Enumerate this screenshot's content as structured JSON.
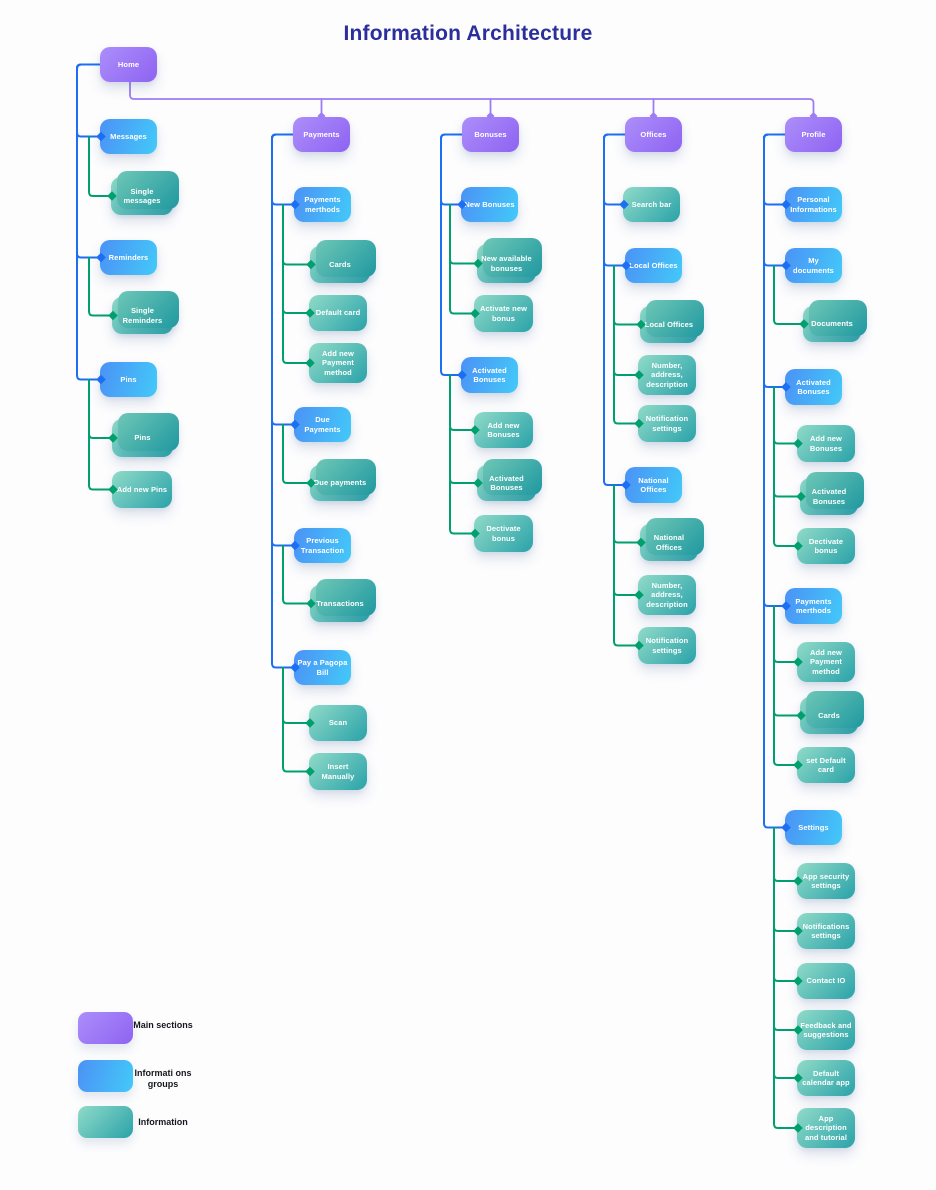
{
  "title": "Information Architecture",
  "colors": {
    "title": "#2b2f9e",
    "main_node": "#9a73f5",
    "group_node": "#47aef7",
    "info_node": "#49b3b2",
    "blue_wire": "#1c6ef2",
    "green_wire": "#00a06e",
    "purple_wire": "#9d7df5"
  },
  "legend": [
    {
      "label": "Main sections",
      "type": "main"
    },
    {
      "label": "Informati ons groups",
      "type": "group"
    },
    {
      "label": "Information",
      "type": "info"
    }
  ],
  "nodes": [
    {
      "id": "home",
      "label": "Home",
      "type": "main",
      "stacked": false,
      "parent": null,
      "link": null
    },
    {
      "id": "messages",
      "label": "Messages",
      "type": "group",
      "stacked": false,
      "parent": "home",
      "link": "blue"
    },
    {
      "id": "single-messages",
      "label": "Single messages",
      "type": "info",
      "stacked": true,
      "parent": "messages",
      "link": "green"
    },
    {
      "id": "reminders",
      "label": "Reminders",
      "type": "group",
      "stacked": false,
      "parent": "home",
      "link": "blue"
    },
    {
      "id": "single-reminders",
      "label": "Single Reminders",
      "type": "info",
      "stacked": true,
      "parent": "reminders",
      "link": "green"
    },
    {
      "id": "pins",
      "label": "Pins",
      "type": "group",
      "stacked": false,
      "parent": "home",
      "link": "blue"
    },
    {
      "id": "pins-info",
      "label": "Pins",
      "type": "info",
      "stacked": true,
      "parent": "pins",
      "link": "green"
    },
    {
      "id": "add-new-pins",
      "label": "Add new Pins",
      "type": "info",
      "stacked": false,
      "parent": "pins",
      "link": "green"
    },
    {
      "id": "payments",
      "label": "Payments",
      "type": "main",
      "stacked": false,
      "parent": "home",
      "link": "purple"
    },
    {
      "id": "payments-methods",
      "label": "Payments merthods",
      "type": "group",
      "stacked": false,
      "parent": "payments",
      "link": "blue"
    },
    {
      "id": "cards",
      "label": "Cards",
      "type": "info",
      "stacked": true,
      "parent": "payments-methods",
      "link": "green"
    },
    {
      "id": "default-card",
      "label": "Default card",
      "type": "info",
      "stacked": false,
      "parent": "payments-methods",
      "link": "green"
    },
    {
      "id": "add-new-payment-method",
      "label": "Add new Payment method",
      "type": "info",
      "stacked": false,
      "parent": "payments-methods",
      "link": "green"
    },
    {
      "id": "due-payments",
      "label": "Due Payments",
      "type": "group",
      "stacked": false,
      "parent": "payments",
      "link": "blue"
    },
    {
      "id": "due-payments-info",
      "label": "Due payments",
      "type": "info",
      "stacked": true,
      "parent": "due-payments",
      "link": "green"
    },
    {
      "id": "previous-transaction",
      "label": "Previous Transaction",
      "type": "group",
      "stacked": false,
      "parent": "payments",
      "link": "blue"
    },
    {
      "id": "transactions",
      "label": "Transactions",
      "type": "info",
      "stacked": true,
      "parent": "previous-transaction",
      "link": "green"
    },
    {
      "id": "pay-pagopa-bill",
      "label": "Pay a Pagopa Bill",
      "type": "group",
      "stacked": false,
      "parent": "payments",
      "link": "blue"
    },
    {
      "id": "scan",
      "label": "Scan",
      "type": "info",
      "stacked": false,
      "parent": "pay-pagopa-bill",
      "link": "green"
    },
    {
      "id": "insert-manually",
      "label": "Insert Manually",
      "type": "info",
      "stacked": false,
      "parent": "pay-pagopa-bill",
      "link": "green"
    },
    {
      "id": "bonuses",
      "label": "Bonuses",
      "type": "main",
      "stacked": false,
      "parent": "home",
      "link": "purple"
    },
    {
      "id": "new-bonuses",
      "label": "New Bonuses",
      "type": "group",
      "stacked": false,
      "parent": "bonuses",
      "link": "blue"
    },
    {
      "id": "new-available-bonuses",
      "label": "New available bonuses",
      "type": "info",
      "stacked": true,
      "parent": "new-bonuses",
      "link": "green"
    },
    {
      "id": "activate-new-bonus",
      "label": "Activate new bonus",
      "type": "info",
      "stacked": false,
      "parent": "new-bonuses",
      "link": "green"
    },
    {
      "id": "activated-bonuses",
      "label": "Activated Bonuses",
      "type": "group",
      "stacked": false,
      "parent": "bonuses",
      "link": "blue"
    },
    {
      "id": "add-new-bonuses",
      "label": "Add new Bonuses",
      "type": "info",
      "stacked": false,
      "parent": "activated-bonuses",
      "link": "green"
    },
    {
      "id": "activated-bonuses-info",
      "label": "Activated Bonuses",
      "type": "info",
      "stacked": true,
      "parent": "activated-bonuses",
      "link": "green"
    },
    {
      "id": "dectivate-bonus",
      "label": "Dectivate bonus",
      "type": "info",
      "stacked": false,
      "parent": "activated-bonuses",
      "link": "green"
    },
    {
      "id": "offices",
      "label": "Offices",
      "type": "main",
      "stacked": false,
      "parent": "home",
      "link": "purple"
    },
    {
      "id": "search-bar",
      "label": "Search bar",
      "type": "info",
      "stacked": false,
      "parent": "offices",
      "link": "blue"
    },
    {
      "id": "local-offices",
      "label": "Local Offices",
      "type": "group",
      "stacked": false,
      "parent": "offices",
      "link": "blue"
    },
    {
      "id": "local-offices-info",
      "label": "Local Offices",
      "type": "info",
      "stacked": true,
      "parent": "local-offices",
      "link": "green"
    },
    {
      "id": "number-address-local",
      "label": "Number, address, description",
      "type": "info",
      "stacked": false,
      "parent": "local-offices",
      "link": "green"
    },
    {
      "id": "notification-settings-local",
      "label": "Notification settings",
      "type": "info",
      "stacked": false,
      "parent": "local-offices",
      "link": "green"
    },
    {
      "id": "national-offices",
      "label": "National Offices",
      "type": "group",
      "stacked": false,
      "parent": "offices",
      "link": "blue"
    },
    {
      "id": "national-offices-info",
      "label": "National Offices",
      "type": "info",
      "stacked": true,
      "parent": "national-offices",
      "link": "green"
    },
    {
      "id": "number-address-national",
      "label": "Number, address, description",
      "type": "info",
      "stacked": false,
      "parent": "national-offices",
      "link": "green"
    },
    {
      "id": "notification-settings-national",
      "label": "Notification settings",
      "type": "info",
      "stacked": false,
      "parent": "national-offices",
      "link": "green"
    },
    {
      "id": "profile",
      "label": "Profile",
      "type": "main",
      "stacked": false,
      "parent": "home",
      "link": "purple"
    },
    {
      "id": "personal-informations",
      "label": "Personal Informations",
      "type": "group",
      "stacked": false,
      "parent": "profile",
      "link": "blue"
    },
    {
      "id": "my-documents",
      "label": "My documents",
      "type": "group",
      "stacked": false,
      "parent": "profile",
      "link": "blue"
    },
    {
      "id": "documents",
      "label": "Documents",
      "type": "info",
      "stacked": true,
      "parent": "my-documents",
      "link": "green"
    },
    {
      "id": "activated-bonuses-profile",
      "label": "Activated Bonuses",
      "type": "group",
      "stacked": false,
      "parent": "profile",
      "link": "blue"
    },
    {
      "id": "add-new-bonuses-profile",
      "label": "Add new Bonuses",
      "type": "info",
      "stacked": false,
      "parent": "activated-bonuses-profile",
      "link": "green"
    },
    {
      "id": "activated-bonuses-profile-info",
      "label": "Activated Bonuses",
      "type": "info",
      "stacked": true,
      "parent": "activated-bonuses-profile",
      "link": "green"
    },
    {
      "id": "dectivate-bonus-profile",
      "label": "Dectivate bonus",
      "type": "info",
      "stacked": false,
      "parent": "activated-bonuses-profile",
      "link": "green"
    },
    {
      "id": "payments-methods-profile",
      "label": "Payments merthods",
      "type": "group",
      "stacked": false,
      "parent": "profile",
      "link": "blue"
    },
    {
      "id": "add-new-payment-method-profile",
      "label": "Add new Payment method",
      "type": "info",
      "stacked": false,
      "parent": "payments-methods-profile",
      "link": "green"
    },
    {
      "id": "cards-profile",
      "label": "Cards",
      "type": "info",
      "stacked": true,
      "parent": "payments-methods-profile",
      "link": "green"
    },
    {
      "id": "set-default-card",
      "label": "set Default card",
      "type": "info",
      "stacked": false,
      "parent": "payments-methods-profile",
      "link": "green"
    },
    {
      "id": "settings",
      "label": "Settings",
      "type": "group",
      "stacked": false,
      "parent": "profile",
      "link": "blue"
    },
    {
      "id": "app-security-settings",
      "label": "App security settings",
      "type": "info",
      "stacked": false,
      "parent": "settings",
      "link": "green"
    },
    {
      "id": "notifications-settings",
      "label": "Notifications settings",
      "type": "info",
      "stacked": false,
      "parent": "settings",
      "link": "green"
    },
    {
      "id": "contact-io",
      "label": "Contact IO",
      "type": "info",
      "stacked": false,
      "parent": "settings",
      "link": "green"
    },
    {
      "id": "feedback-and-suggestions",
      "label": "Feedback and suggestions",
      "type": "info",
      "stacked": false,
      "parent": "settings",
      "link": "green"
    },
    {
      "id": "default-calendar-app",
      "label": "Default calendar app",
      "type": "info",
      "stacked": false,
      "parent": "settings",
      "link": "green"
    },
    {
      "id": "app-description-and-tutorial",
      "label": "App description and tutorial",
      "type": "info",
      "stacked": false,
      "parent": "settings",
      "link": "green"
    }
  ]
}
